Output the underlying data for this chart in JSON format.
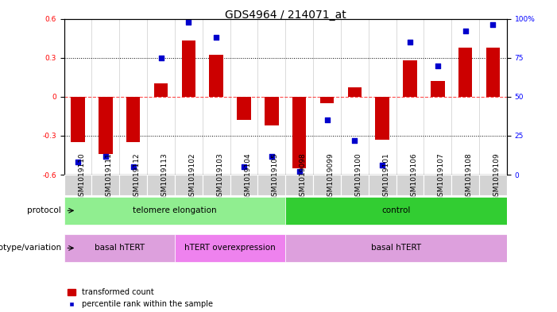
{
  "title": "GDS4964 / 214071_at",
  "samples": [
    "GSM1019110",
    "GSM1019111",
    "GSM1019112",
    "GSM1019113",
    "GSM1019102",
    "GSM1019103",
    "GSM1019104",
    "GSM1019105",
    "GSM1019098",
    "GSM1019099",
    "GSM1019100",
    "GSM1019101",
    "GSM1019106",
    "GSM1019107",
    "GSM1019108",
    "GSM1019109"
  ],
  "bar_values": [
    -0.35,
    -0.44,
    -0.35,
    0.1,
    0.43,
    0.32,
    -0.18,
    -0.22,
    -0.55,
    -0.05,
    0.07,
    -0.33,
    0.28,
    0.12,
    0.38,
    0.38
  ],
  "percentile_values": [
    8,
    12,
    5,
    75,
    98,
    88,
    5,
    12,
    2,
    35,
    22,
    6,
    85,
    70,
    92,
    96
  ],
  "protocol_groups": [
    {
      "label": "telomere elongation",
      "start": 0,
      "end": 8,
      "color": "#90ee90"
    },
    {
      "label": "control",
      "start": 8,
      "end": 16,
      "color": "#32cd32"
    }
  ],
  "genotype_groups": [
    {
      "label": "basal hTERT",
      "start": 0,
      "end": 4,
      "color": "#dda0dd"
    },
    {
      "label": "hTERT overexpression",
      "start": 4,
      "end": 8,
      "color": "#ee82ee"
    },
    {
      "label": "basal hTERT",
      "start": 8,
      "end": 16,
      "color": "#dda0dd"
    }
  ],
  "ylim": [
    -0.6,
    0.6
  ],
  "yticks_left": [
    -0.6,
    -0.3,
    0.0,
    0.3,
    0.6
  ],
  "yticks_right": [
    0,
    25,
    50,
    75,
    100
  ],
  "hline_y": [
    0.3,
    0.0,
    -0.3
  ],
  "bar_color": "#cc0000",
  "dot_color": "#0000cc",
  "bar_width": 0.5,
  "dot_size": 25,
  "background_color": "#ffffff",
  "plot_bg_color": "#ffffff",
  "title_fontsize": 10,
  "tick_fontsize": 6.5,
  "label_fontsize": 7.5,
  "legend_fontsize": 7,
  "protocol_label": "protocol",
  "genotype_label": "genotype/variation",
  "legend_bar": "transformed count",
  "legend_dot": "percentile rank within the sample"
}
